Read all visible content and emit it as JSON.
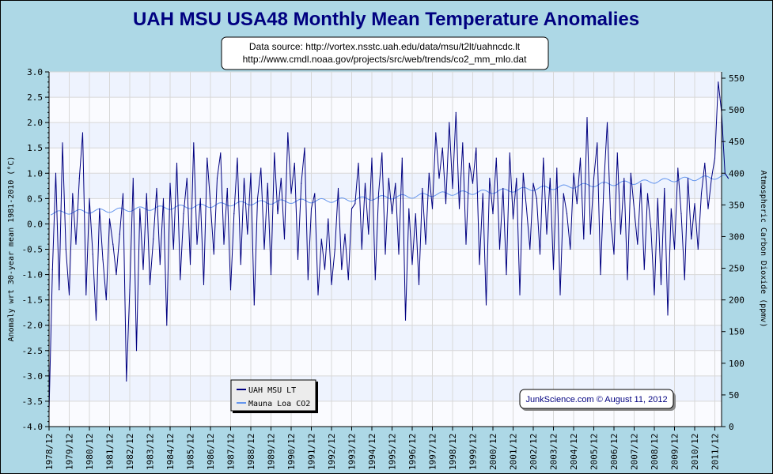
{
  "chart_data": {
    "type": "line",
    "title": "UAH MSU USA48 Monthly Mean Temperature Anomalies",
    "source_lines": [
      "Data source: http://vortex.nsstc.uah.edu/data/msu/t2lt/uahncdc.lt",
      "http://www.cmdl.noaa.gov/projects/src/web/trends/co2_mm_mlo.dat"
    ],
    "ylabel": "Anomaly wrt 30-year mean 1981-2010 (°C)",
    "y2label": "Atmospheric Carbon Dioxide (ppmv)",
    "ylim": [
      -4.0,
      3.0
    ],
    "y2lim": [
      0,
      550
    ],
    "yticks": [
      "3.0",
      "2.5",
      "2.0",
      "1.5",
      "1.0",
      "0.5",
      "0.0",
      "-0.5",
      "-1.0",
      "-1.5",
      "-2.0",
      "-2.5",
      "-3.0",
      "-3.5",
      "-4.0"
    ],
    "y2ticks": [
      "550",
      "500",
      "450",
      "400",
      "350",
      "300",
      "250",
      "200",
      "150",
      "100",
      "50",
      "0"
    ],
    "xticks": [
      "1978/12",
      "1979/12",
      "1980/12",
      "1981/12",
      "1982/12",
      "1983/12",
      "1984/12",
      "1985/12",
      "1986/12",
      "1987/12",
      "1988/12",
      "1989/12",
      "1990/12",
      "1991/12",
      "1992/12",
      "1993/12",
      "1994/12",
      "1995/12",
      "1996/12",
      "1997/12",
      "1998/12",
      "1999/12",
      "2000/12",
      "2001/12",
      "2002/12",
      "2003/12",
      "2004/12",
      "2005/12",
      "2006/12",
      "2007/12",
      "2008/12",
      "2009/12",
      "2010/12",
      "2011/12"
    ],
    "grid": true,
    "legend_position": "bottom-left",
    "legend": [
      "UAH MSU LT",
      "Mauna Loa CO2"
    ],
    "annotation": "JunkScience.com © August 11, 2012",
    "colors": {
      "temp": "#000080",
      "co2": "#6495ed",
      "background": "#add8e6",
      "band": "#eef3fe"
    },
    "series": [
      {
        "name": "UAH MSU LT",
        "axis": "left",
        "start": 1978.917,
        "step_years": 0.16667,
        "values": [
          -3.7,
          -0.9,
          1.0,
          -1.3,
          1.6,
          -0.5,
          -1.4,
          0.6,
          -0.4,
          0.9,
          1.8,
          -1.4,
          0.5,
          -0.6,
          -1.9,
          0.3,
          -0.7,
          -1.5,
          0.1,
          -0.4,
          -1.0,
          -0.2,
          0.6,
          -3.1,
          -1.3,
          0.9,
          -2.5,
          0.3,
          -0.9,
          0.6,
          -1.2,
          -0.3,
          0.7,
          -0.8,
          0.5,
          -2.0,
          0.8,
          -0.5,
          1.2,
          -1.1,
          0.2,
          0.9,
          -0.8,
          1.6,
          -0.4,
          0.5,
          -1.2,
          1.3,
          0.4,
          -0.6,
          0.9,
          1.4,
          -0.4,
          0.7,
          -1.3,
          0.2,
          1.3,
          -0.8,
          0.9,
          -0.2,
          1.0,
          -1.6,
          0.5,
          1.1,
          -0.5,
          0.8,
          -1.0,
          1.4,
          0.2,
          0.9,
          -0.3,
          1.8,
          0.6,
          1.2,
          -0.7,
          0.8,
          1.5,
          -1.1,
          0.3,
          0.6,
          -1.4,
          -0.3,
          -0.9,
          0.1,
          -1.2,
          -0.5,
          0.7,
          -0.9,
          -0.2,
          -1.1,
          0.3,
          0.4,
          1.2,
          -0.5,
          0.8,
          -0.2,
          1.3,
          -1.1,
          0.6,
          1.4,
          -0.6,
          0.9,
          0.2,
          0.8,
          -0.6,
          1.3,
          -1.9,
          0.3,
          -0.8,
          0.2,
          -1.2,
          0.7,
          -0.4,
          1.0,
          0.3,
          1.8,
          0.9,
          1.5,
          0.4,
          2.0,
          0.7,
          2.2,
          0.3,
          1.6,
          -0.4,
          1.2,
          0.8,
          1.5,
          -0.8,
          0.6,
          -1.6,
          0.9,
          0.2,
          1.3,
          -0.5,
          0.7,
          -1.0,
          1.4,
          0.1,
          0.9,
          -1.4,
          1.0,
          0.3,
          -0.5,
          0.8,
          0.5,
          -0.6,
          1.3,
          -0.2,
          0.9,
          -0.9,
          1.1,
          -1.4,
          0.6,
          0.2,
          -0.5,
          1.0,
          0.4,
          1.3,
          -0.3,
          2.1,
          -0.2,
          0.9,
          1.6,
          -1.0,
          0.8,
          2.0,
          0.1,
          -0.6,
          1.4,
          -0.2,
          0.9,
          -1.1,
          1.0,
          0.3,
          -0.4,
          0.8,
          -0.9,
          0.6,
          -0.1,
          -1.4,
          0.5,
          -1.2,
          0.7,
          -1.8,
          0.3,
          -0.5,
          1.1,
          0.2,
          -1.1,
          0.9,
          -0.3,
          0.4,
          -0.5,
          0.6,
          1.2,
          0.3,
          0.9,
          1.3,
          2.8,
          2.2,
          1.0,
          0.9
        ]
      },
      {
        "name": "Mauna Loa CO2",
        "axis": "right",
        "years": [
          1979,
          1980,
          1981,
          1982,
          1983,
          1984,
          1985,
          1986,
          1987,
          1988,
          1989,
          1990,
          1991,
          1992,
          1993,
          1994,
          1995,
          1996,
          1997,
          1998,
          1999,
          2000,
          2001,
          2002,
          2003,
          2004,
          2005,
          2006,
          2007,
          2008,
          2009,
          2010,
          2011,
          2012
        ],
        "annual_mean": [
          336.8,
          338.7,
          340.1,
          341.4,
          343.0,
          344.6,
          346.0,
          347.4,
          349.2,
          351.6,
          353.1,
          354.4,
          355.6,
          356.4,
          357.1,
          358.8,
          360.8,
          362.6,
          363.7,
          366.7,
          368.4,
          369.7,
          371.3,
          373.5,
          375.8,
          377.5,
          379.8,
          381.9,
          383.8,
          385.6,
          387.4,
          389.9,
          391.6,
          393.8
        ],
        "seasonal_amplitude": 3.2
      }
    ]
  }
}
